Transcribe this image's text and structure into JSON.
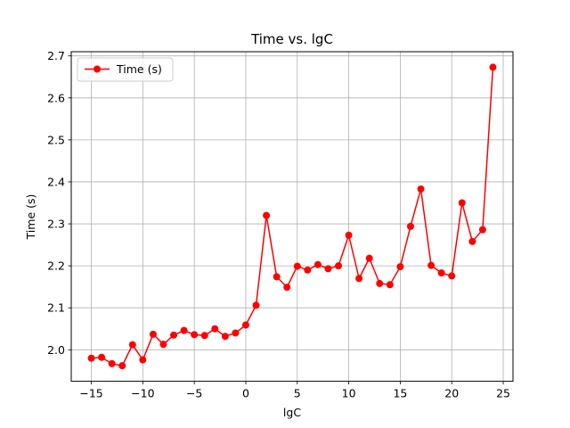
{
  "chart_data": {
    "type": "line",
    "title": "Time vs. lgC",
    "xlabel": "lgC",
    "ylabel": "Time (s)",
    "xlim": [
      -16.95,
      25.95
    ],
    "ylim": [
      1.925,
      2.71
    ],
    "x_ticks": [
      -15,
      -10,
      -5,
      0,
      5,
      10,
      15,
      20,
      25
    ],
    "x_tick_labels": [
      "−15",
      "−10",
      "−5",
      "0",
      "5",
      "10",
      "15",
      "20",
      "25"
    ],
    "y_ticks": [
      2.0,
      2.1,
      2.2,
      2.3,
      2.4,
      2.5,
      2.6,
      2.7
    ],
    "y_tick_labels": [
      "2.0",
      "2.1",
      "2.2",
      "2.3",
      "2.4",
      "2.5",
      "2.6",
      "2.7"
    ],
    "grid": true,
    "legend_position": "top-left",
    "series": [
      {
        "name": "Time (s)",
        "color": "#ff0000",
        "marker": "circle",
        "x": [
          -15,
          -14,
          -13,
          -12,
          -11,
          -10,
          -9,
          -8,
          -7,
          -6,
          -5,
          -4,
          -3,
          -2,
          -1,
          0,
          1,
          2,
          3,
          4,
          5,
          6,
          7,
          8,
          9,
          10,
          11,
          12,
          13,
          14,
          15,
          16,
          17,
          18,
          19,
          20,
          21,
          22,
          23,
          24
        ],
        "y": [
          1.98,
          1.982,
          1.967,
          1.962,
          2.012,
          1.976,
          2.037,
          2.013,
          2.035,
          2.046,
          2.036,
          2.034,
          2.05,
          2.032,
          2.04,
          2.059,
          2.106,
          2.32,
          2.174,
          2.149,
          2.199,
          2.19,
          2.203,
          2.193,
          2.2,
          2.273,
          2.17,
          2.218,
          2.158,
          2.155,
          2.198,
          2.294,
          2.383,
          2.201,
          2.183,
          2.176,
          2.35,
          2.258,
          2.286,
          2.673
        ]
      }
    ]
  }
}
